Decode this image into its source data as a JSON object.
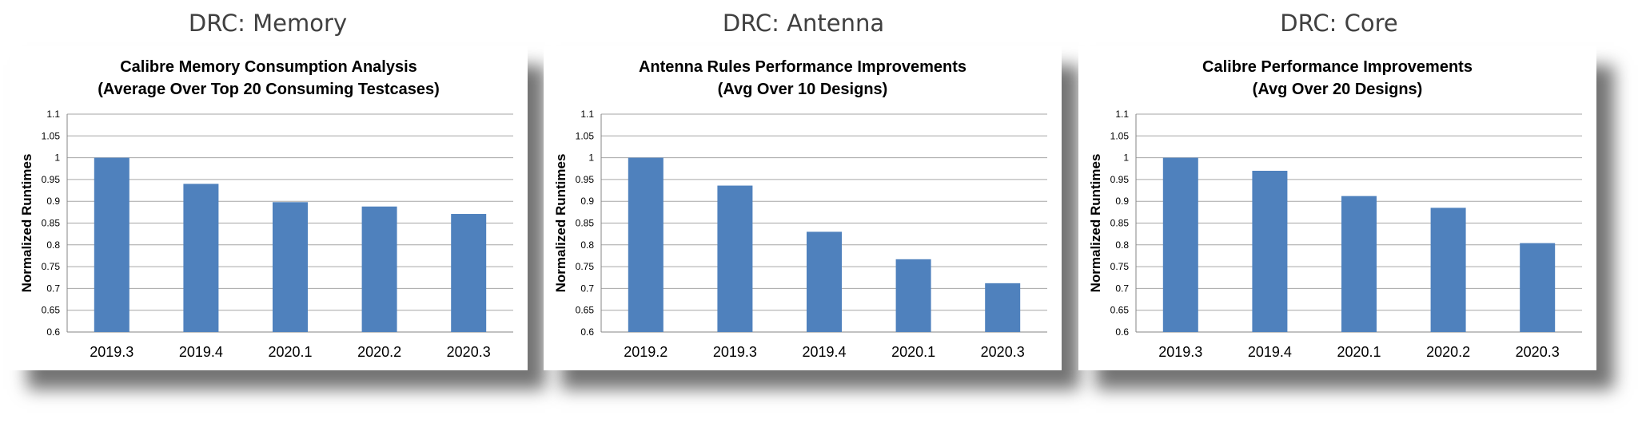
{
  "chart_data": [
    {
      "heading": "DRC: Memory",
      "type": "bar",
      "title_lines": [
        "Calibre Memory Consumption Analysis",
        "(Average Over Top 20 Consuming Testcases)"
      ],
      "ylabel": "Normalized Runtimes",
      "categories": [
        "2019.3",
        "2019.4",
        "2020.1",
        "2020.2",
        "2020.3"
      ],
      "values": [
        1.0,
        0.94,
        0.898,
        0.888,
        0.871
      ],
      "ylim": [
        0.6,
        1.1
      ],
      "yticks": [
        "0.6",
        "0.65",
        "0.7",
        "0.75",
        "0.8",
        "0.85",
        "0.9",
        "0.95",
        "1",
        "1.05",
        "1.1"
      ],
      "grid": true,
      "bar_color": "#4f81bd"
    },
    {
      "heading": "DRC: Antenna",
      "type": "bar",
      "title_lines": [
        "Antenna Rules Performance Improvements",
        "(Avg Over 10 Designs)"
      ],
      "ylabel": "Normalized Runtimes",
      "categories": [
        "2019.2",
        "2019.3",
        "2019.4",
        "2020.1",
        "2020.3"
      ],
      "values": [
        1.0,
        0.936,
        0.83,
        0.767,
        0.712
      ],
      "ylim": [
        0.6,
        1.1
      ],
      "yticks": [
        "0.6",
        "0.65",
        "0.7",
        "0.75",
        "0.8",
        "0.85",
        "0.9",
        "0.95",
        "1",
        "1.05",
        "1.1"
      ],
      "grid": true,
      "bar_color": "#4f81bd"
    },
    {
      "heading": "DRC: Core",
      "type": "bar",
      "title_lines": [
        "Calibre Performance Improvements",
        "(Avg Over 20 Designs)"
      ],
      "ylabel": "Normalized Runtimes",
      "categories": [
        "2019.3",
        "2019.4",
        "2020.1",
        "2020.2",
        "2020.3"
      ],
      "values": [
        1.0,
        0.97,
        0.912,
        0.885,
        0.804
      ],
      "ylim": [
        0.6,
        1.1
      ],
      "yticks": [
        "0.6",
        "0.65",
        "0.7",
        "0.75",
        "0.8",
        "0.85",
        "0.9",
        "0.95",
        "1",
        "1.05",
        "1.1"
      ],
      "grid": true,
      "bar_color": "#4f81bd"
    }
  ]
}
